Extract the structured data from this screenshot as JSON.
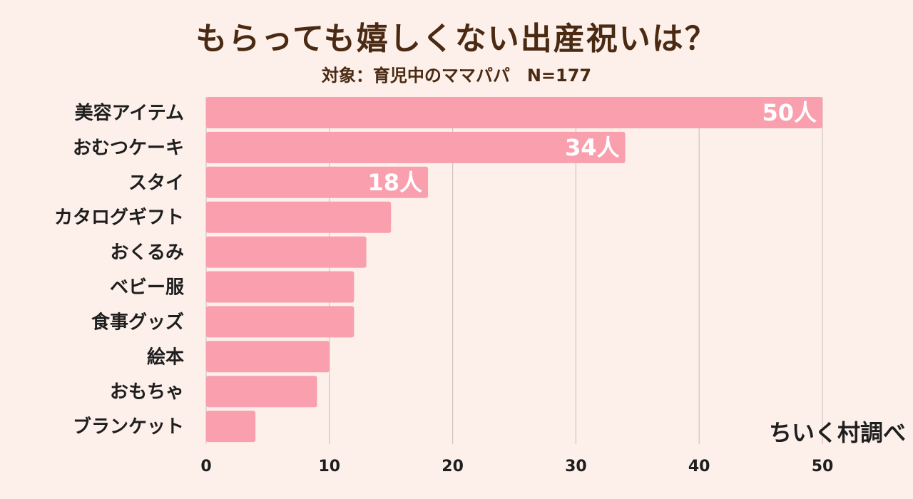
{
  "colors": {
    "background": "#fdf0ea",
    "bar": "#f99fae",
    "grid": "#cfc3c1",
    "title": "#4a2a12",
    "text": "#1e1e1e"
  },
  "credit": "ちいく村調べ",
  "chart_data": {
    "type": "bar",
    "orientation": "horizontal",
    "title": "もらっても嬉しくない出産祝いは？",
    "subtitle": "対象：育児中のママパパ　N=177",
    "categories": [
      "美容アイテム",
      "おむつケーキ",
      "スタイ",
      "カタログギフト",
      "おくるみ",
      "ベビー服",
      "食事グッズ",
      "絵本",
      "おもちゃ",
      "ブランケット"
    ],
    "values": [
      50,
      34,
      18,
      15,
      13,
      12,
      12,
      10,
      9,
      4
    ],
    "data_labels": [
      "50人",
      "34人",
      "18人",
      null,
      null,
      null,
      null,
      null,
      null,
      null
    ],
    "xlim": [
      0,
      50
    ],
    "xticks": [
      0,
      10,
      20,
      30,
      40,
      50
    ],
    "grid": true,
    "legend": "none"
  }
}
